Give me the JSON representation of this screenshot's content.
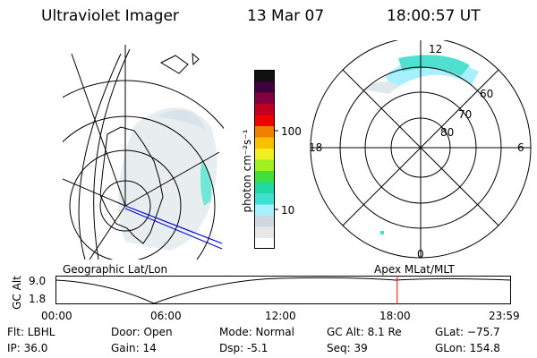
{
  "header": {
    "title": "Ultraviolet Imager",
    "date": "13 Mar 07",
    "time": "18:00:57 UT"
  },
  "colorbar": {
    "unit_label": "photon cm⁻²s⁻¹",
    "ticks": [
      "100",
      "10"
    ],
    "colors": [
      "#ffffff",
      "#e8e8e8",
      "#cfd8e0",
      "#a8f0ff",
      "#40e0d0",
      "#20d8a0",
      "#40e040",
      "#a0f020",
      "#f0f020",
      "#f8c000",
      "#f08000",
      "#f00000",
      "#c00020",
      "#800040",
      "#400040",
      "#101010"
    ]
  },
  "left_map": {
    "label": "Geographic Lat/Lon"
  },
  "right_map": {
    "label": "Apex  MLat/MLT",
    "hour_labels": {
      "top": "12",
      "left": "18",
      "right": "6",
      "bottom": "0"
    },
    "lat_labels": [
      "60",
      "70",
      "80"
    ]
  },
  "timeline": {
    "ylabel": "GC Alt",
    "y_ticks": [
      "9.0",
      "1.8"
    ],
    "x_ticks": [
      "00:00",
      "06:00",
      "12:00",
      "18:00",
      "23:59"
    ],
    "marker_time_hours": 18.0,
    "marker_color": "#ff0000"
  },
  "info": {
    "flt": "Flt: LBHL",
    "ip": "IP: 36.0",
    "door": "Door: Open",
    "gain": "Gain: 14",
    "mode": "Mode: Normal",
    "dsp": "Dsp:    -5.1",
    "gcalt": "GC Alt: 8.1 Re",
    "seq": "Seq: 39",
    "glat": "GLat: −75.7",
    "glon": "GLon: 154.8"
  }
}
